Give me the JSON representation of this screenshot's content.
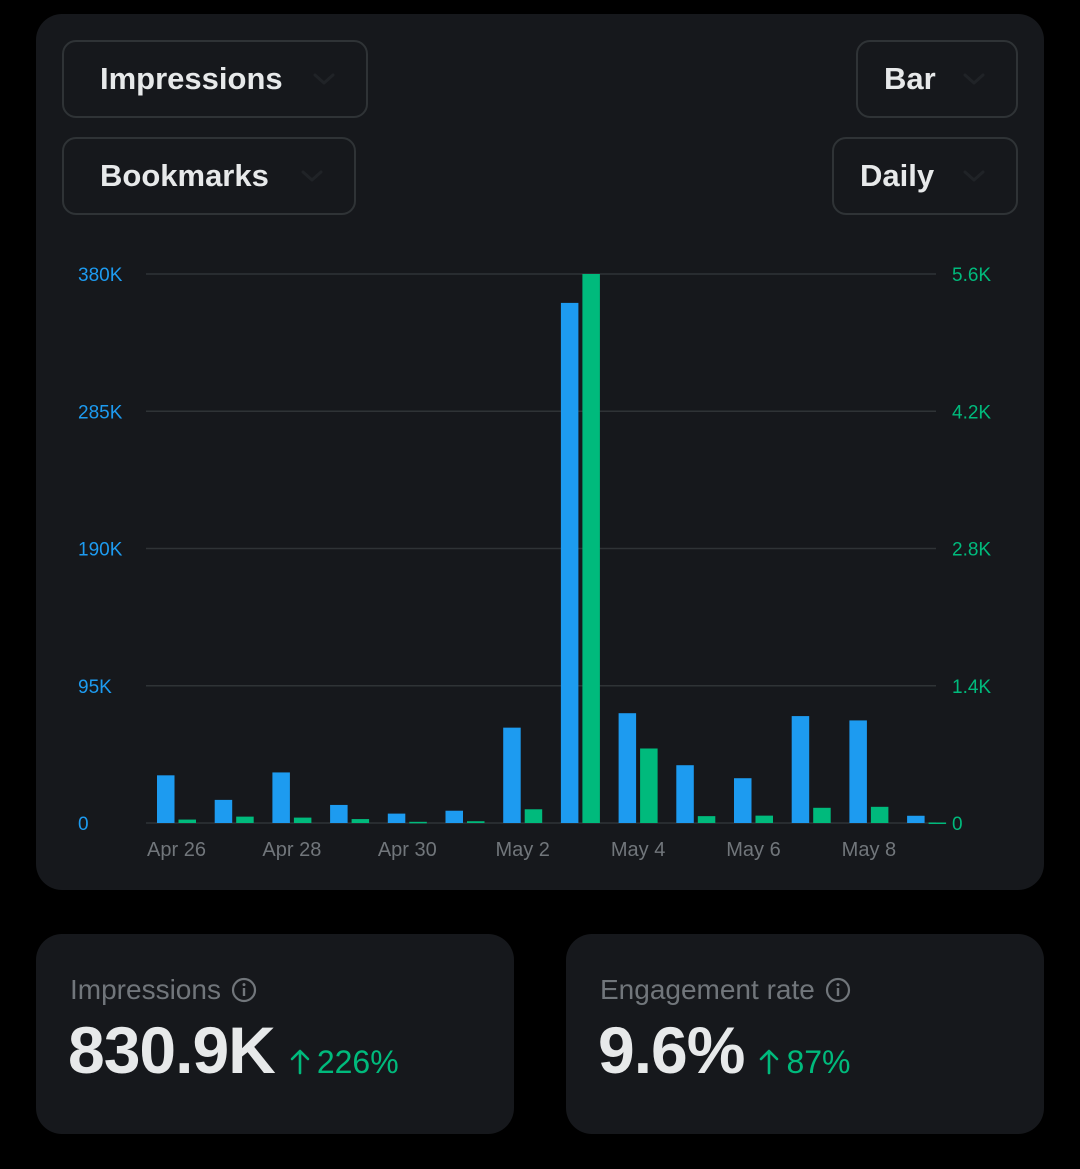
{
  "controls": {
    "metric_primary": "Impressions",
    "metric_secondary": "Bookmarks",
    "chart_type": "Bar",
    "period": "Daily"
  },
  "colors": {
    "primary": "#1d9bf0",
    "secondary": "#00ba7c",
    "card": "#16181c",
    "muted": "#71767b"
  },
  "chart_data": {
    "type": "bar",
    "x": [
      "Apr 26",
      "Apr 27",
      "Apr 28",
      "Apr 29",
      "Apr 30",
      "May 1",
      "May 2",
      "May 3",
      "May 4",
      "May 5",
      "May 6",
      "May 7",
      "May 8",
      "May 9"
    ],
    "x_tick_labels": [
      "Apr 26",
      "Apr 28",
      "Apr 30",
      "May 2",
      "May 4",
      "May 6",
      "May 8"
    ],
    "series": [
      {
        "name": "Impressions",
        "axis": "left",
        "color": "#1d9bf0",
        "values": [
          33000,
          16000,
          35000,
          12500,
          6500,
          8500,
          66000,
          360000,
          76000,
          40000,
          31000,
          74000,
          71000,
          5000
        ]
      },
      {
        "name": "Bookmarks",
        "axis": "right",
        "color": "#00ba7c",
        "values": [
          35,
          65,
          55,
          40,
          12,
          18,
          140,
          5600,
          760,
          70,
          75,
          155,
          165,
          5
        ]
      }
    ],
    "y_left": {
      "ticks": [
        0,
        95000,
        190000,
        285000,
        380000
      ],
      "tick_labels": [
        "0",
        "95K",
        "190K",
        "285K",
        "380K"
      ],
      "range": [
        0,
        380000
      ]
    },
    "y_right": {
      "ticks": [
        0,
        1400,
        2800,
        4200,
        5600
      ],
      "tick_labels": [
        "0",
        "1.4K",
        "2.8K",
        "4.2K",
        "5.6K"
      ],
      "range": [
        0,
        5600
      ]
    },
    "grid": true
  },
  "stats": [
    {
      "label": "Impressions",
      "value": "830.9K",
      "change": "226%"
    },
    {
      "label": "Engagement rate",
      "value": "9.6%",
      "change": "87%"
    }
  ]
}
